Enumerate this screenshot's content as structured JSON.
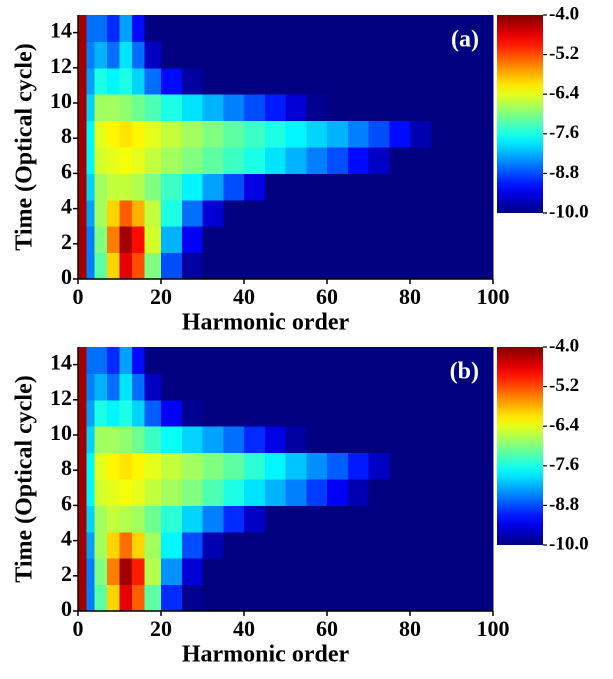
{
  "chart_data": [
    {
      "type": "heatmap",
      "panel_label": "(a)",
      "xlabel": "Harmonic order",
      "ylabel": "Time (Optical cycle)",
      "xlim": [
        0,
        100
      ],
      "xticks": [
        0,
        20,
        40,
        60,
        80,
        100
      ],
      "ylim": [
        0,
        15
      ],
      "yticks": [
        0,
        2,
        4,
        6,
        8,
        10,
        12,
        14
      ],
      "colormap": "jet",
      "zlim": [
        -10,
        -4
      ],
      "colorbar_ticks": [
        {
          "value": -4,
          "label": "-4.0"
        },
        -5.2,
        -6.4,
        -7.6,
        -8.8,
        {
          "value": -10,
          "label": "-10.0"
        }
      ],
      "x_edges": [
        0,
        2,
        4,
        7,
        10,
        13,
        16,
        20,
        25,
        30,
        35,
        40,
        45,
        50,
        55,
        60,
        65,
        70,
        75,
        80,
        85,
        90,
        100
      ],
      "y_edges": [
        0,
        1.5,
        3,
        4.5,
        6,
        7.5,
        9,
        10.5,
        12,
        13.5,
        15
      ],
      "z": [
        [
          -4.2,
          -8.5,
          -7.2,
          -6.0,
          -4.6,
          -5.2,
          -7.0,
          -8.8,
          -9.8,
          -10,
          -10,
          -10,
          -10,
          -10,
          -10,
          -10,
          -10,
          -10,
          -10,
          -10,
          -10,
          -10
        ],
        [
          -4.2,
          -8.5,
          -7.0,
          -5.5,
          -4.2,
          -4.8,
          -6.5,
          -8.2,
          -9.3,
          -10,
          -10,
          -10,
          -10,
          -10,
          -10,
          -10,
          -10,
          -10,
          -10,
          -10,
          -10,
          -10
        ],
        [
          -4.2,
          -8.3,
          -6.8,
          -6.0,
          -5.3,
          -5.8,
          -6.6,
          -7.6,
          -8.6,
          -9.5,
          -10,
          -10,
          -10,
          -10,
          -10,
          -10,
          -10,
          -10,
          -10,
          -10,
          -10,
          -10
        ],
        [
          -4.2,
          -8.0,
          -6.8,
          -6.6,
          -6.6,
          -6.7,
          -7.0,
          -7.4,
          -7.8,
          -8.3,
          -8.8,
          -9.4,
          -10,
          -10,
          -10,
          -10,
          -10,
          -10,
          -10,
          -10,
          -10,
          -10
        ],
        [
          -4.2,
          -7.8,
          -6.5,
          -6.4,
          -6.3,
          -6.4,
          -6.6,
          -6.8,
          -7.0,
          -7.2,
          -7.4,
          -7.6,
          -7.9,
          -8.2,
          -8.5,
          -8.8,
          -9.2,
          -9.6,
          -10,
          -10,
          -10,
          -10
        ],
        [
          -4.2,
          -7.8,
          -6.4,
          -6.2,
          -6.1,
          -6.2,
          -6.4,
          -6.6,
          -6.8,
          -7.0,
          -7.2,
          -7.4,
          -7.6,
          -7.8,
          -8.0,
          -8.2,
          -8.5,
          -8.8,
          -9.2,
          -9.7,
          -10,
          -10
        ],
        [
          -4.2,
          -8.0,
          -6.8,
          -6.8,
          -6.9,
          -7.1,
          -7.3,
          -7.6,
          -7.9,
          -8.2,
          -8.5,
          -8.8,
          -9.1,
          -9.5,
          -9.9,
          -10,
          -10,
          -10,
          -10,
          -10,
          -10,
          -10
        ],
        [
          -4.2,
          -8.3,
          -7.6,
          -7.8,
          -7.6,
          -8.0,
          -8.6,
          -9.2,
          -9.8,
          -10,
          -10,
          -10,
          -10,
          -10,
          -10,
          -10,
          -10,
          -10,
          -10,
          -10,
          -10,
          -10
        ],
        [
          -4.2,
          -8.5,
          -8.2,
          -8.6,
          -7.9,
          -8.6,
          -9.6,
          -10,
          -10,
          -10,
          -10,
          -10,
          -10,
          -10,
          -10,
          -10,
          -10,
          -10,
          -10,
          -10,
          -10,
          -10
        ],
        [
          -4.2,
          -8.6,
          -8.6,
          -9.0,
          -8.3,
          -9.2,
          -10,
          -10,
          -10,
          -10,
          -10,
          -10,
          -10,
          -10,
          -10,
          -10,
          -10,
          -10,
          -10,
          -10,
          -10,
          -10
        ]
      ]
    },
    {
      "type": "heatmap",
      "panel_label": "(b)",
      "xlabel": "Harmonic order",
      "ylabel": "Time (Optical cycle)",
      "xlim": [
        0,
        100
      ],
      "xticks": [
        0,
        20,
        40,
        60,
        80,
        100
      ],
      "ylim": [
        0,
        15
      ],
      "yticks": [
        0,
        2,
        4,
        6,
        8,
        10,
        12,
        14
      ],
      "colormap": "jet",
      "zlim": [
        -10,
        -4
      ],
      "colorbar_ticks": [
        {
          "value": -4,
          "label": "-4.0"
        },
        -5.2,
        -6.4,
        -7.6,
        -8.8,
        {
          "value": -10,
          "label": "-10.0"
        }
      ],
      "x_edges": [
        0,
        2,
        4,
        7,
        10,
        13,
        16,
        20,
        25,
        30,
        35,
        40,
        45,
        50,
        55,
        60,
        65,
        70,
        75,
        80,
        85,
        90,
        100
      ],
      "y_edges": [
        0,
        1.5,
        3,
        4.5,
        6,
        7.5,
        9,
        10.5,
        12,
        13.5,
        15
      ],
      "z": [
        [
          -4.2,
          -8.5,
          -7.2,
          -6.0,
          -4.6,
          -5.3,
          -7.2,
          -9.0,
          -9.9,
          -10,
          -10,
          -10,
          -10,
          -10,
          -10,
          -10,
          -10,
          -10,
          -10,
          -10,
          -10,
          -10
        ],
        [
          -4.2,
          -8.5,
          -7.0,
          -5.5,
          -4.2,
          -4.9,
          -6.7,
          -8.4,
          -9.5,
          -10,
          -10,
          -10,
          -10,
          -10,
          -10,
          -10,
          -10,
          -10,
          -10,
          -10,
          -10,
          -10
        ],
        [
          -4.2,
          -8.3,
          -6.8,
          -6.0,
          -5.4,
          -6.0,
          -6.8,
          -7.8,
          -8.8,
          -9.7,
          -10,
          -10,
          -10,
          -10,
          -10,
          -10,
          -10,
          -10,
          -10,
          -10,
          -10,
          -10
        ],
        [
          -4.2,
          -8.0,
          -6.8,
          -6.6,
          -6.7,
          -6.8,
          -7.1,
          -7.5,
          -8.0,
          -8.5,
          -9.0,
          -9.6,
          -10,
          -10,
          -10,
          -10,
          -10,
          -10,
          -10,
          -10,
          -10,
          -10
        ],
        [
          -4.2,
          -7.8,
          -6.5,
          -6.4,
          -6.3,
          -6.4,
          -6.6,
          -6.8,
          -7.0,
          -7.3,
          -7.6,
          -7.9,
          -8.2,
          -8.5,
          -8.9,
          -9.3,
          -9.7,
          -10,
          -10,
          -10,
          -10,
          -10
        ],
        [
          -4.2,
          -7.8,
          -6.4,
          -6.2,
          -6.1,
          -6.2,
          -6.4,
          -6.6,
          -6.8,
          -7.0,
          -7.2,
          -7.5,
          -7.8,
          -8.1,
          -8.4,
          -8.7,
          -9.1,
          -9.6,
          -10,
          -10,
          -10,
          -10
        ],
        [
          -4.2,
          -8.0,
          -6.8,
          -6.8,
          -6.9,
          -7.1,
          -7.4,
          -7.7,
          -8.0,
          -8.3,
          -8.6,
          -9.0,
          -9.4,
          -9.8,
          -10,
          -10,
          -10,
          -10,
          -10,
          -10,
          -10,
          -10
        ],
        [
          -4.2,
          -8.3,
          -7.6,
          -7.8,
          -7.6,
          -8.0,
          -8.7,
          -9.3,
          -9.9,
          -10,
          -10,
          -10,
          -10,
          -10,
          -10,
          -10,
          -10,
          -10,
          -10,
          -10,
          -10,
          -10
        ],
        [
          -4.2,
          -8.5,
          -8.2,
          -8.6,
          -7.9,
          -8.6,
          -9.6,
          -10,
          -10,
          -10,
          -10,
          -10,
          -10,
          -10,
          -10,
          -10,
          -10,
          -10,
          -10,
          -10,
          -10,
          -10
        ],
        [
          -4.2,
          -8.6,
          -8.6,
          -9.0,
          -8.3,
          -9.2,
          -10,
          -10,
          -10,
          -10,
          -10,
          -10,
          -10,
          -10,
          -10,
          -10,
          -10,
          -10,
          -10,
          -10,
          -10,
          -10
        ]
      ]
    }
  ]
}
